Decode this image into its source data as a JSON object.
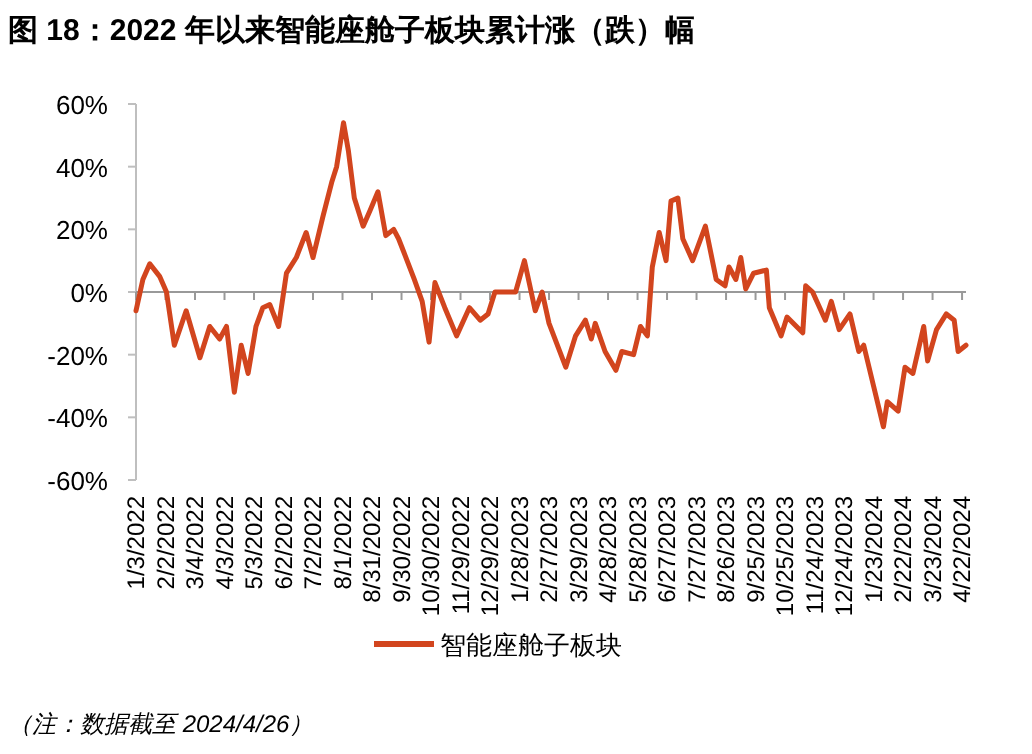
{
  "chart_data": {
    "type": "line",
    "title": "图 18：2022 年以来智能座舱子板块累计涨（跌）幅",
    "x": [
      "2022-01-03",
      "2022-01-10",
      "2022-01-17",
      "2022-01-27",
      "2022-02-03",
      "2022-02-11",
      "2022-02-23",
      "2022-03-09",
      "2022-03-19",
      "2022-03-29",
      "2022-04-05",
      "2022-04-13",
      "2022-04-20",
      "2022-04-27",
      "2022-05-05",
      "2022-05-12",
      "2022-05-19",
      "2022-05-28",
      "2022-06-05",
      "2022-06-15",
      "2022-06-25",
      "2022-07-02",
      "2022-07-12",
      "2022-07-21",
      "2022-07-26",
      "2022-08-02",
      "2022-08-07",
      "2022-08-13",
      "2022-08-22",
      "2022-08-29",
      "2022-09-06",
      "2022-09-14",
      "2022-09-22",
      "2022-09-27",
      "2022-10-02",
      "2022-10-13",
      "2022-10-21",
      "2022-10-28",
      "2022-11-03",
      "2022-11-13",
      "2022-11-25",
      "2022-12-08",
      "2022-12-19",
      "2022-12-27",
      "2023-01-03",
      "2023-01-24",
      "2023-02-02",
      "2023-02-13",
      "2023-02-20",
      "2023-02-27",
      "2023-03-16",
      "2023-03-26",
      "2023-04-05",
      "2023-04-11",
      "2023-04-15",
      "2023-04-25",
      "2023-05-06",
      "2023-05-12",
      "2023-05-24",
      "2023-05-31",
      "2023-06-07",
      "2023-06-12",
      "2023-06-19",
      "2023-06-26",
      "2023-07-01",
      "2023-07-08",
      "2023-07-13",
      "2023-07-23",
      "2023-08-05",
      "2023-08-16",
      "2023-08-25",
      "2023-08-29",
      "2023-09-05",
      "2023-09-10",
      "2023-09-15",
      "2023-09-23",
      "2023-10-06",
      "2023-10-09",
      "2023-10-21",
      "2023-10-27",
      "2023-11-12",
      "2023-11-15",
      "2023-11-22",
      "2023-12-05",
      "2023-12-11",
      "2023-12-19",
      "2023-12-30",
      "2024-01-08",
      "2024-01-13",
      "2024-01-23",
      "2024-02-02",
      "2024-02-06",
      "2024-02-17",
      "2024-02-24",
      "2024-03-03",
      "2024-03-14",
      "2024-03-18",
      "2024-03-27",
      "2024-04-06",
      "2024-04-14",
      "2024-04-18",
      "2024-04-26"
    ],
    "series": [
      {
        "name": "智能座舱子板块",
        "color": "#d2451e",
        "values": [
          -6,
          4,
          9,
          5,
          0,
          -17,
          -6,
          -21,
          -11,
          -15,
          -11,
          -32,
          -17,
          -26,
          -11,
          -5,
          -4,
          -11,
          6,
          11,
          19,
          11,
          24,
          35,
          40,
          54,
          45,
          30,
          21,
          26,
          32,
          18,
          20,
          17,
          13,
          4,
          -3,
          -16,
          3,
          -5,
          -14,
          -5,
          -9,
          -7,
          0,
          0,
          10,
          -6,
          0,
          -10,
          -24,
          -14,
          -9,
          -15,
          -10,
          -19,
          -25,
          -19,
          -20,
          -11,
          -14,
          8,
          19,
          10,
          29,
          30,
          17,
          10,
          21,
          4,
          2,
          8,
          4,
          11,
          1,
          6,
          7,
          -5,
          -14,
          -8,
          -13,
          2,
          0,
          -9,
          -3,
          -12,
          -7,
          -19,
          -17,
          -30,
          -43,
          -35,
          -38,
          -24,
          -26,
          -11,
          -22,
          -12,
          -7,
          -9,
          -19,
          -17
        ]
      }
    ],
    "xlim": [
      "2022-01-03",
      "2024-04-26"
    ],
    "xticks": [
      {
        "value": "2022-01-03",
        "label": "1/3/2022"
      },
      {
        "value": "2022-02-02",
        "label": "2/2/2022"
      },
      {
        "value": "2022-03-04",
        "label": "3/4/2022"
      },
      {
        "value": "2022-04-03",
        "label": "4/3/2022"
      },
      {
        "value": "2022-05-03",
        "label": "5/3/2022"
      },
      {
        "value": "2022-06-02",
        "label": "6/2/2022"
      },
      {
        "value": "2022-07-02",
        "label": "7/2/2022"
      },
      {
        "value": "2022-08-01",
        "label": "8/1/2022"
      },
      {
        "value": "2022-08-31",
        "label": "8/31/2022"
      },
      {
        "value": "2022-09-30",
        "label": "9/30/2022"
      },
      {
        "value": "2022-10-30",
        "label": "10/30/2022"
      },
      {
        "value": "2022-11-29",
        "label": "11/29/2022"
      },
      {
        "value": "2022-12-29",
        "label": "12/29/2022"
      },
      {
        "value": "2023-01-28",
        "label": "1/28/2023"
      },
      {
        "value": "2023-02-27",
        "label": "2/27/2023"
      },
      {
        "value": "2023-03-29",
        "label": "3/29/2023"
      },
      {
        "value": "2023-04-28",
        "label": "4/28/2023"
      },
      {
        "value": "2023-05-28",
        "label": "5/28/2023"
      },
      {
        "value": "2023-06-27",
        "label": "6/27/2023"
      },
      {
        "value": "2023-07-27",
        "label": "7/27/2023"
      },
      {
        "value": "2023-08-26",
        "label": "8/26/2023"
      },
      {
        "value": "2023-09-25",
        "label": "9/25/2023"
      },
      {
        "value": "2023-10-25",
        "label": "10/25/2023"
      },
      {
        "value": "2023-11-24",
        "label": "11/24/2023"
      },
      {
        "value": "2023-12-24",
        "label": "12/24/2023"
      },
      {
        "value": "2024-01-23",
        "label": "1/23/2024"
      },
      {
        "value": "2024-02-22",
        "label": "2/22/2024"
      },
      {
        "value": "2024-03-23",
        "label": "3/23/2024"
      },
      {
        "value": "2024-04-22",
        "label": "4/22/2024"
      }
    ],
    "ylim": [
      -60,
      60
    ],
    "yticks": [
      {
        "value": 60,
        "label": "60%"
      },
      {
        "value": 40,
        "label": "40%"
      },
      {
        "value": 20,
        "label": "20%"
      },
      {
        "value": 0,
        "label": "0%"
      },
      {
        "value": -20,
        "label": "-20%"
      },
      {
        "value": -40,
        "label": "-40%"
      },
      {
        "value": -60,
        "label": "-60%"
      }
    ],
    "legend": "bottom",
    "marker": "none",
    "line_style": "solid",
    "annotations": [
      "（注：数据截至 2024/4/26）"
    ]
  }
}
